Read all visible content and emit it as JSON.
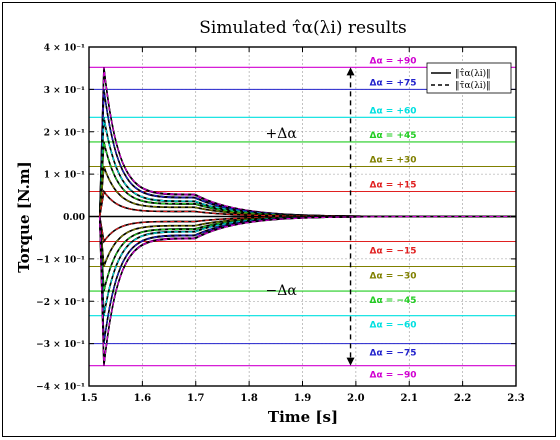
{
  "chart_data": {
    "type": "line",
    "title": "Simulated τ̂α(λi) results",
    "xlabel": "Time [s]",
    "ylabel": "Torque [N.m]",
    "xlim": [
      1.5,
      2.3
    ],
    "ylim": [
      -0.4,
      0.4
    ],
    "grid": true,
    "x_ticks": [
      1.5,
      1.6,
      1.7,
      1.8,
      1.9,
      2.0,
      2.1,
      2.2,
      2.3
    ],
    "x_tick_labels": [
      "1.5",
      "1.6",
      "1.7",
      "1.8",
      "1.9",
      "2.0",
      "2.1",
      "2.2",
      "2.3"
    ],
    "y_ticks": [
      0.4,
      0.3,
      0.2,
      0.1,
      0.0,
      -0.1,
      -0.2,
      -0.3,
      -0.4
    ],
    "y_tick_labels": [
      "4 × 10⁻¹",
      "3 × 10⁻¹",
      "2 × 10⁻¹",
      "1 × 10⁻¹",
      "0.00",
      "−1 × 10⁻¹",
      "−2 × 10⁻¹",
      "−3 × 10⁻¹",
      "−4 × 10⁻¹"
    ],
    "legend": {
      "placement": "top-right",
      "entries": [
        {
          "label": "‖τ̂α(λi)‖",
          "style": "solid"
        },
        {
          "label": "‖τ̄α(λi)‖",
          "style": "dashed"
        }
      ]
    },
    "reference_levels": [
      {
        "label": "Δα = +90",
        "value": 0.352,
        "color": "#d100d1"
      },
      {
        "label": "Δα = +75",
        "value": 0.3,
        "color": "#2222cc"
      },
      {
        "label": "Δα = +60",
        "value": 0.234,
        "color": "#00e0e0"
      },
      {
        "label": "Δα = +45",
        "value": 0.176,
        "color": "#22cc22"
      },
      {
        "label": "Δα = +30",
        "value": 0.118,
        "color": "#808000"
      },
      {
        "label": "Δα = +15",
        "value": 0.059,
        "color": "#e02020"
      },
      {
        "label": "Δα = −15",
        "value": -0.059,
        "color": "#e02020"
      },
      {
        "label": "Δα = −30",
        "value": -0.118,
        "color": "#808000"
      },
      {
        "label": "Δα = −45",
        "value": -0.176,
        "color": "#22cc22"
      },
      {
        "label": "Δα = −60",
        "value": -0.234,
        "color": "#00e0e0"
      },
      {
        "label": "Δα = −75",
        "value": -0.3,
        "color": "#2222cc"
      },
      {
        "label": "Δα = −90",
        "value": -0.352,
        "color": "#d100d1"
      }
    ],
    "series_traces": {
      "t_start": 1.528,
      "t_settled": 2.3,
      "peak_time": 1.528,
      "peak_values": [
        0.352,
        0.3,
        0.234,
        0.176,
        0.118,
        0.059,
        -0.059,
        -0.118,
        -0.176,
        -0.234,
        -0.3,
        -0.352
      ],
      "plateau_values": [
        0.052,
        0.045,
        0.036,
        0.03,
        0.022,
        0.012,
        -0.012,
        -0.022,
        -0.03,
        -0.036,
        -0.045,
        -0.052
      ],
      "plateau_time": 1.72,
      "line_color": "#000000",
      "dashed_colors": [
        "#d100d1",
        "#2222cc",
        "#00e0e0",
        "#22cc22",
        "#808000",
        "#e02020",
        "#e02020",
        "#808000",
        "#22cc22",
        "#00e0e0",
        "#2222cc",
        "#d100d1"
      ]
    },
    "annotations": [
      {
        "text": "+Δα",
        "x": 1.86,
        "y": 0.185
      },
      {
        "text": "−Δα",
        "x": 1.86,
        "y": -0.185
      }
    ],
    "arrow": {
      "x": 1.99,
      "y_top": 0.352,
      "y_bottom": -0.352
    }
  }
}
